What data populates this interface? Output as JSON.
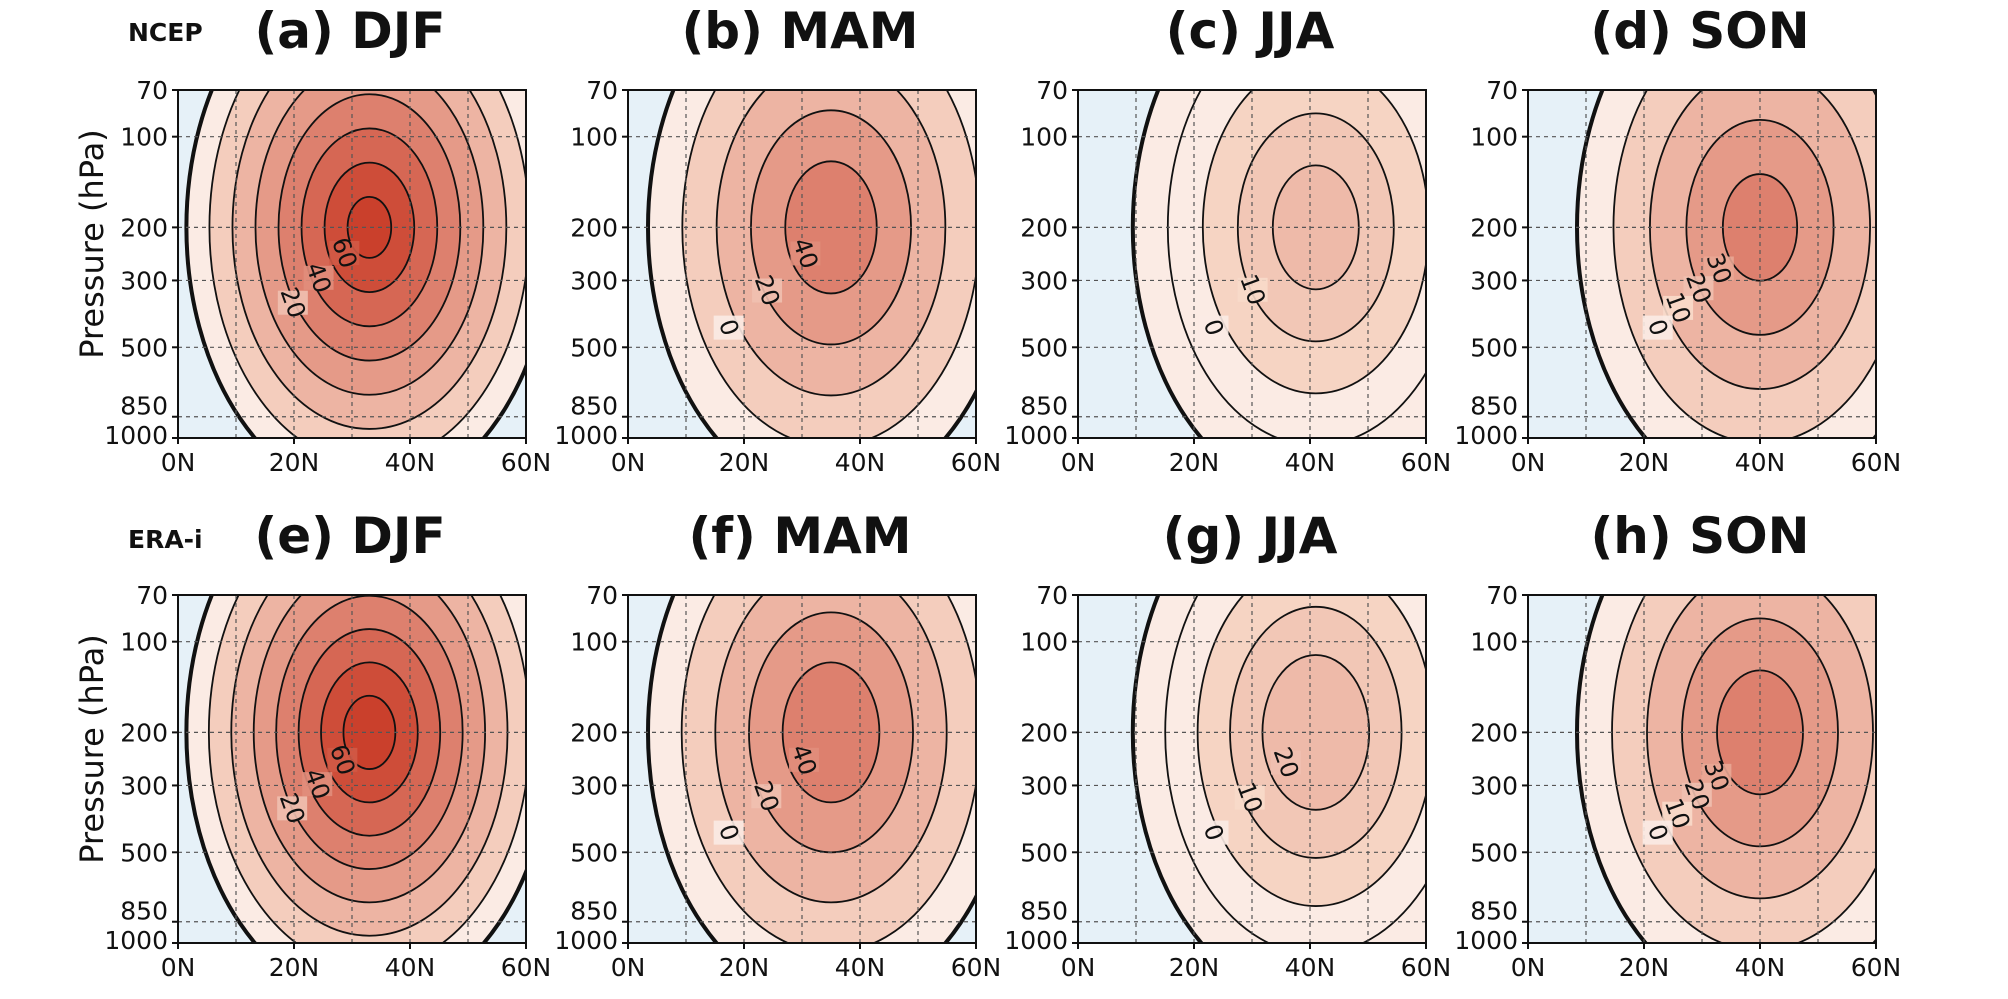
{
  "figure": {
    "row_labels": [
      "NCEP",
      "ERA-i"
    ],
    "y_axis_title": "Pressure (hPa)"
  },
  "chart_data": [
    {
      "type": "contour",
      "title": "(a) DJF",
      "dataset": "NCEP",
      "season": "DJF",
      "x_ticks": [
        "0N",
        "20N",
        "40N",
        "60N"
      ],
      "x_range": [
        0,
        60
      ],
      "y_ticks": [
        "70",
        "100",
        "200",
        "300",
        "500",
        "850",
        "1000"
      ],
      "y_range": [
        1000,
        70
      ],
      "y_scale": "log",
      "grid": true,
      "core": {
        "lat": 33,
        "p": 200,
        "max": 70
      },
      "zero_line": "thick",
      "contour_labels": [
        "60",
        "40",
        "20"
      ]
    },
    {
      "type": "contour",
      "title": "(b) MAM",
      "dataset": "NCEP",
      "season": "MAM",
      "x_ticks": [
        "0N",
        "20N",
        "40N",
        "60N"
      ],
      "x_range": [
        0,
        60
      ],
      "y_ticks": [
        "70",
        "100",
        "200",
        "300",
        "500",
        "850",
        "1000"
      ],
      "y_range": [
        1000,
        70
      ],
      "y_scale": "log",
      "grid": true,
      "core": {
        "lat": 35,
        "p": 200,
        "max": 45
      },
      "zero_line": "thick",
      "contour_labels": [
        "40",
        "20",
        "0"
      ]
    },
    {
      "type": "contour",
      "title": "(c) JJA",
      "dataset": "NCEP",
      "season": "JJA",
      "x_ticks": [
        "0N",
        "20N",
        "40N",
        "60N"
      ],
      "x_range": [
        0,
        60
      ],
      "y_ticks": [
        "70",
        "100",
        "200",
        "300",
        "500",
        "850",
        "1000"
      ],
      "y_range": [
        1000,
        70
      ],
      "y_scale": "log",
      "grid": true,
      "core": {
        "lat": 41,
        "p": 200,
        "max": 22
      },
      "zero_line": "thick",
      "contour_labels": [
        "10",
        "0"
      ]
    },
    {
      "type": "contour",
      "title": "(d) SON",
      "dataset": "NCEP",
      "season": "SON",
      "x_ticks": [
        "0N",
        "20N",
        "40N",
        "60N"
      ],
      "x_range": [
        0,
        60
      ],
      "y_ticks": [
        "70",
        "100",
        "200",
        "300",
        "500",
        "850",
        "1000"
      ],
      "y_range": [
        1000,
        70
      ],
      "y_scale": "log",
      "grid": true,
      "core": {
        "lat": 40,
        "p": 200,
        "max": 42
      },
      "zero_line": "thick",
      "contour_labels": [
        "30",
        "20",
        "10",
        "0"
      ]
    },
    {
      "type": "contour",
      "title": "(e) DJF",
      "dataset": "ERA-i",
      "season": "DJF",
      "x_ticks": [
        "0N",
        "20N",
        "40N",
        "60N"
      ],
      "x_range": [
        0,
        60
      ],
      "y_ticks": [
        "70",
        "100",
        "200",
        "300",
        "500",
        "850",
        "1000"
      ],
      "y_range": [
        1000,
        70
      ],
      "y_scale": "log",
      "grid": true,
      "core": {
        "lat": 33,
        "p": 200,
        "max": 72
      },
      "zero_line": "thick",
      "contour_labels": [
        "60",
        "40",
        "20"
      ]
    },
    {
      "type": "contour",
      "title": "(f) MAM",
      "dataset": "ERA-i",
      "season": "MAM",
      "x_ticks": [
        "0N",
        "20N",
        "40N",
        "60N"
      ],
      "x_range": [
        0,
        60
      ],
      "y_ticks": [
        "70",
        "100",
        "200",
        "300",
        "500",
        "850",
        "1000"
      ],
      "y_range": [
        1000,
        70
      ],
      "y_scale": "log",
      "grid": true,
      "core": {
        "lat": 35,
        "p": 200,
        "max": 46
      },
      "zero_line": "thick",
      "contour_labels": [
        "40",
        "20",
        "0"
      ]
    },
    {
      "type": "contour",
      "title": "(g) JJA",
      "dataset": "ERA-i",
      "season": "JJA",
      "x_ticks": [
        "0N",
        "20N",
        "40N",
        "60N"
      ],
      "x_range": [
        0,
        60
      ],
      "y_ticks": [
        "70",
        "100",
        "200",
        "300",
        "500",
        "850",
        "1000"
      ],
      "y_range": [
        1000,
        70
      ],
      "y_scale": "log",
      "grid": true,
      "core": {
        "lat": 41,
        "p": 200,
        "max": 24
      },
      "zero_line": "thick",
      "contour_labels": [
        "20",
        "10",
        "0"
      ]
    },
    {
      "type": "contour",
      "title": "(h) SON",
      "dataset": "ERA-i",
      "season": "SON",
      "x_ticks": [
        "0N",
        "20N",
        "40N",
        "60N"
      ],
      "x_range": [
        0,
        60
      ],
      "y_ticks": [
        "70",
        "100",
        "200",
        "300",
        "500",
        "850",
        "1000"
      ],
      "y_range": [
        1000,
        70
      ],
      "y_scale": "log",
      "grid": true,
      "core": {
        "lat": 40,
        "p": 200,
        "max": 44
      },
      "zero_line": "thick",
      "contour_labels": [
        "30",
        "20",
        "10",
        "0"
      ]
    }
  ]
}
